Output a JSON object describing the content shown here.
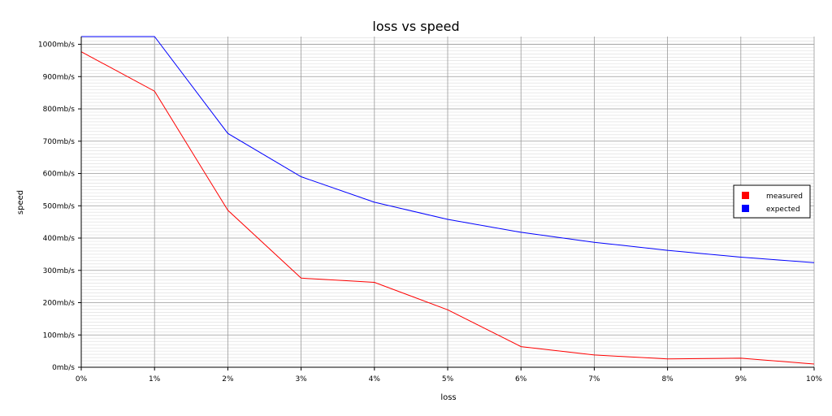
{
  "chart_data": {
    "type": "line",
    "title": "loss vs speed",
    "xlabel": "loss",
    "ylabel": "speed",
    "x": [
      0,
      1,
      2,
      3,
      4,
      5,
      6,
      7,
      8,
      9,
      10
    ],
    "x_tick_labels": [
      "0%",
      "1%",
      "2%",
      "3%",
      "4%",
      "5%",
      "6%",
      "7%",
      "8%",
      "9%",
      "10%"
    ],
    "y_ticks": [
      0,
      100,
      200,
      300,
      400,
      500,
      600,
      700,
      800,
      900,
      1000
    ],
    "y_tick_labels": [
      "0mb/s",
      "100mb/s",
      "200mb/s",
      "300mb/s",
      "400mb/s",
      "500mb/s",
      "600mb/s",
      "700mb/s",
      "800mb/s",
      "900mb/s",
      "1000mb/s"
    ],
    "xlim": [
      0,
      10
    ],
    "ylim": [
      0,
      1024
    ],
    "grid": true,
    "legend_position": "right",
    "series": [
      {
        "name": "measured",
        "color": "#ff0000",
        "values": [
          977,
          855,
          486,
          276,
          263,
          178,
          64,
          38,
          26,
          28,
          10
        ]
      },
      {
        "name": "expected",
        "color": "#0000ff",
        "values": [
          1024,
          1024,
          724,
          590,
          511,
          458,
          418,
          387,
          362,
          341,
          324
        ]
      }
    ]
  }
}
